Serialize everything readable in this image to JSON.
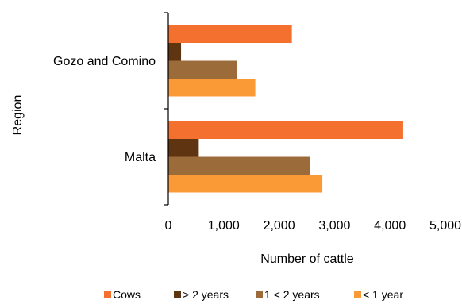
{
  "chart_data": {
    "type": "bar",
    "orientation": "horizontal",
    "categories": [
      "Gozo and Comino",
      "Malta"
    ],
    "series": [
      {
        "name": "Cows",
        "color": "#F4702F",
        "values": [
          2230,
          4240
        ]
      },
      {
        "name": "> 2 years",
        "color": "#5E3510",
        "values": [
          230,
          550
        ]
      },
      {
        "name": "1 < 2 years",
        "color": "#9C6B3A",
        "values": [
          1240,
          2560
        ]
      },
      {
        "name": "< 1 year",
        "color": "#FA9A36",
        "values": [
          1570,
          2780
        ]
      }
    ],
    "xlabel": "Number of cattle",
    "ylabel": "Region",
    "xlim": [
      0,
      5000
    ],
    "xticks": [
      0,
      1000,
      2000,
      3000,
      4000,
      5000
    ],
    "xtick_labels": [
      "0",
      "1,000",
      "2,000",
      "3,000",
      "4,000",
      "5,000"
    ],
    "grid": false,
    "legend_position": "bottom"
  }
}
